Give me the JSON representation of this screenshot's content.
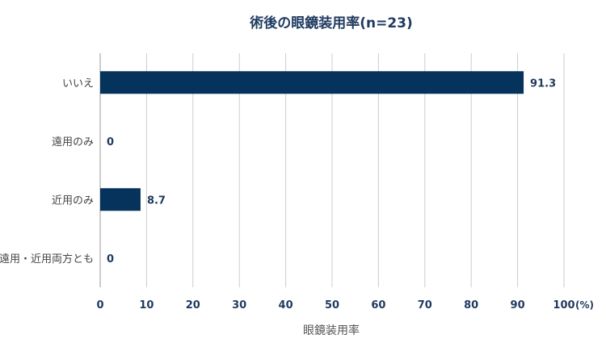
{
  "chart_data": {
    "type": "bar",
    "orientation": "horizontal",
    "title": "術後の眼鏡装用率(n=23)",
    "xlabel": "眼鏡装用率",
    "ylabel": "",
    "x_unit": "(%)",
    "xlim": [
      0,
      100
    ],
    "x_ticks": [
      0,
      10,
      20,
      30,
      40,
      50,
      60,
      70,
      80,
      90,
      100
    ],
    "categories": [
      "いいえ",
      "遠用のみ",
      "近用のみ",
      "遠用・近用両方とも"
    ],
    "values": [
      91.3,
      0,
      8.7,
      0
    ],
    "data_labels": [
      "91.3",
      "0",
      "8.7",
      "0"
    ],
    "grid": true,
    "colors": {
      "bar": "#06335c",
      "grid": "#cccccc",
      "tick": "#1f3a5f"
    }
  }
}
